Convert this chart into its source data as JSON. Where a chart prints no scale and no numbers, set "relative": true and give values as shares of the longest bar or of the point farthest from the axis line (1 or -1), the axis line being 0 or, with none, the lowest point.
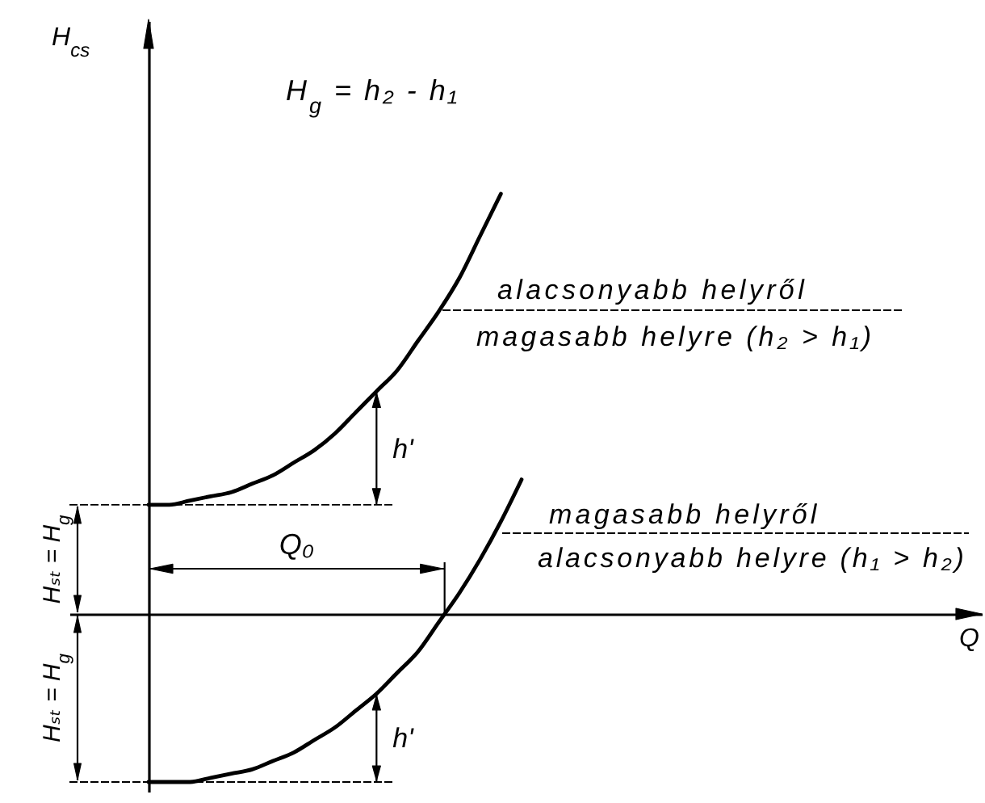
{
  "chart_data": {
    "type": "line",
    "relative": true,
    "categories": [
      null,
      null,
      null,
      null,
      null,
      null,
      null,
      null,
      null,
      null,
      null,
      null,
      null,
      null,
      null,
      null,
      null,
      null,
      null
    ],
    "series": [
      {
        "color": "#000000",
        "values": [
          0.26,
          0.26,
          0.27,
          0.28,
          0.29,
          0.31,
          0.33,
          0.36,
          0.39,
          0.43,
          0.48,
          0.53,
          0.58,
          0.65,
          0.72,
          0.8,
          0.9,
          1.0,
          null
        ]
      },
      {
        "color": "#000000",
        "values": [
          -0.4,
          -0.4,
          -0.4,
          -0.39,
          -0.38,
          -0.37,
          -0.35,
          -0.33,
          -0.3,
          -0.27,
          -0.23,
          -0.19,
          -0.14,
          -0.09,
          -0.02,
          0.05,
          0.13,
          0.22,
          0.32
        ]
      }
    ],
    "annotations": [
      "H$_{cs}$",
      "H$_{g}$ = h₂ - h₁",
      "alacsonyabb helyről",
      "magasabb helyre (h₂ > h₁)",
      "h'",
      "Q₀",
      "magasabb helyről",
      "alacsonyabb helyre (h₁ > h₂)",
      "h'",
      "Hₛₜ = H$_{g}$",
      "Hₛₜ = H$_{g}$",
      "Q"
    ]
  }
}
